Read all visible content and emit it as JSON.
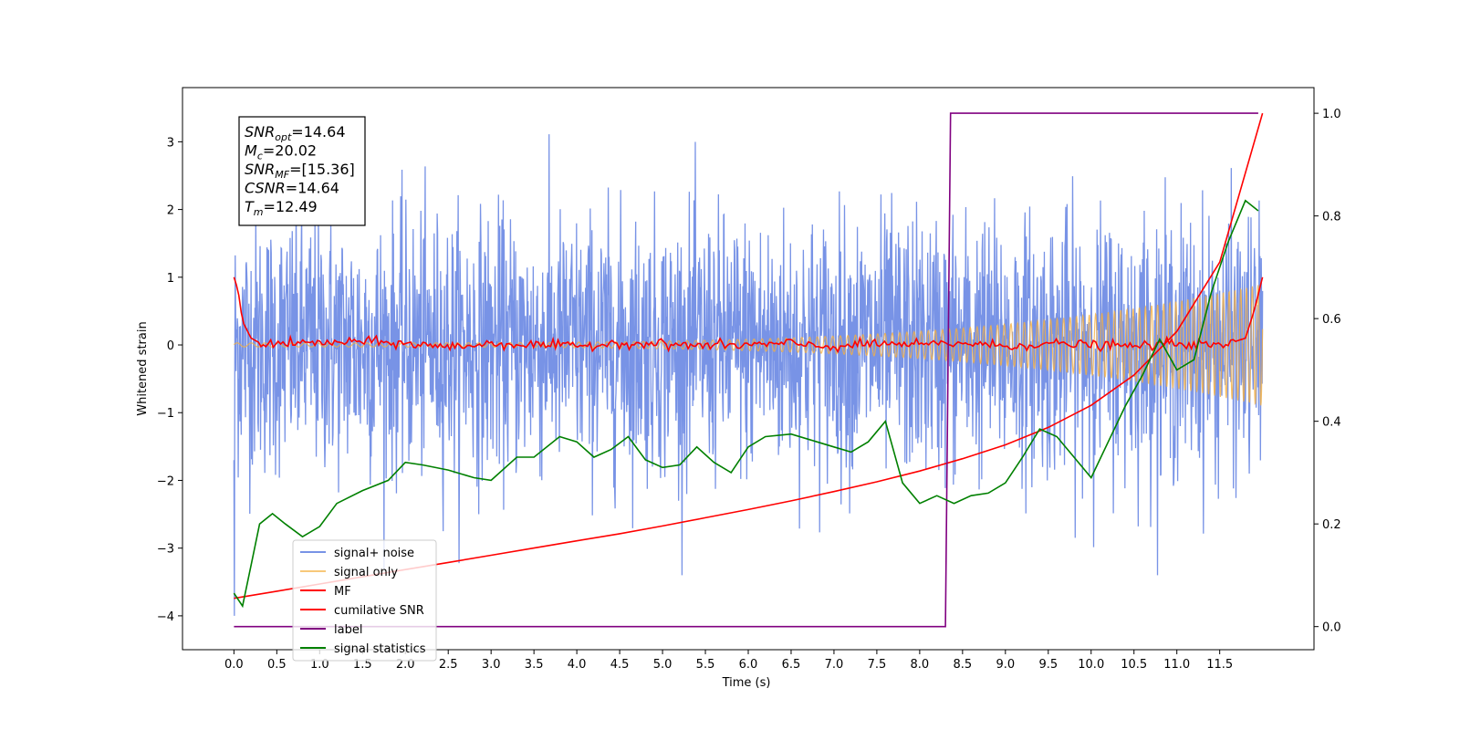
{
  "chart_data": {
    "type": "line",
    "xlabel": "Time (s)",
    "ylabel": "Whitened strain",
    "xlim": [
      -0.6,
      12.6
    ],
    "ylim": [
      -4.5,
      3.8
    ],
    "y2lim": [
      -0.045,
      1.05
    ],
    "x_ticks": [
      0.0,
      0.5,
      1.0,
      1.5,
      2.0,
      2.5,
      3.0,
      3.5,
      4.0,
      4.5,
      5.0,
      5.5,
      6.0,
      6.5,
      7.0,
      7.5,
      8.0,
      8.5,
      9.0,
      9.5,
      10.0,
      10.5,
      11.0,
      11.5
    ],
    "x_tick_labels": [
      "0.0",
      "0.5",
      "1.0",
      "1.5",
      "2.0",
      "2.5",
      "3.0",
      "3.5",
      "4.0",
      "4.5",
      "5.0",
      "5.5",
      "6.0",
      "6.5",
      "7.0",
      "7.5",
      "8.0",
      "8.5",
      "9.0",
      "9.5",
      "10.0",
      "10.5",
      "11.0",
      "11.5"
    ],
    "y_ticks": [
      -4,
      -3,
      -2,
      -1,
      0,
      1,
      2,
      3
    ],
    "y_tick_labels": [
      "−4",
      "−3",
      "−2",
      "−1",
      "0",
      "1",
      "2",
      "3"
    ],
    "y2_ticks": [
      0.0,
      0.2,
      0.4,
      0.6,
      0.8,
      1.0
    ],
    "y2_tick_labels": [
      "0.0",
      "0.2",
      "0.4",
      "0.6",
      "0.8",
      "1.0"
    ],
    "grid": false,
    "legend_position": "bottom-left",
    "annotation_lines": [
      {
        "base": "SNR",
        "sub": "opt",
        "value": "=14.64"
      },
      {
        "base": "M",
        "sub": "c",
        "value": "=20.02"
      },
      {
        "base": "SNR",
        "sub": "MF",
        "value": "=[15.36]"
      },
      {
        "base": "CSNR",
        "sub": "",
        "value": "=14.64"
      },
      {
        "base": "T",
        "sub": "m",
        "value": "=12.49"
      }
    ],
    "series": [
      {
        "name": "signal+ noise",
        "color": "#7893e6",
        "axis": "left",
        "style": "noise",
        "x_range": [
          0.0,
          12.0
        ],
        "envelope": [
          -2.5,
          2.5
        ],
        "peak_range": [
          -3.4,
          3.55
        ]
      },
      {
        "name": "signal only",
        "color": "#f5b041",
        "axis": "left",
        "style": "chirp",
        "x_range": [
          0.0,
          12.0
        ],
        "amplitude_start": 0.03,
        "amplitude_end": 0.9
      },
      {
        "name": "MF",
        "color": "#ff0000",
        "axis": "left",
        "x": [
          0.0,
          0.05,
          0.1,
          0.2,
          0.3,
          0.5,
          1.0,
          1.5,
          2.0,
          2.5,
          3.0,
          3.5,
          4.0,
          4.5,
          5.0,
          5.5,
          6.0,
          6.5,
          7.0,
          7.5,
          8.0,
          8.5,
          9.0,
          9.5,
          10.0,
          10.5,
          11.0,
          11.5,
          11.8,
          11.9,
          12.0
        ],
        "y": [
          1.0,
          0.8,
          0.35,
          0.1,
          0.03,
          0.02,
          0.03,
          0.05,
          0.02,
          -0.03,
          0.02,
          0.0,
          -0.02,
          0.03,
          0.01,
          -0.01,
          0.0,
          0.02,
          -0.03,
          0.02,
          0.0,
          0.03,
          -0.02,
          0.02,
          0.0,
          -0.02,
          0.03,
          -0.02,
          0.1,
          0.5,
          1.0
        ]
      },
      {
        "name": "cumilative SNR",
        "color": "#ff0000",
        "axis": "right",
        "x": [
          0.0,
          0.5,
          1.0,
          1.5,
          2.0,
          2.5,
          3.0,
          3.5,
          4.0,
          4.5,
          5.0,
          5.5,
          6.0,
          6.5,
          7.0,
          7.5,
          8.0,
          8.5,
          9.0,
          9.5,
          10.0,
          10.5,
          11.0,
          11.5,
          12.0
        ],
        "y": [
          0.055,
          0.069,
          0.083,
          0.097,
          0.111,
          0.125,
          0.139,
          0.153,
          0.167,
          0.181,
          0.196,
          0.212,
          0.228,
          0.245,
          0.263,
          0.282,
          0.303,
          0.327,
          0.354,
          0.388,
          0.431,
          0.49,
          0.575,
          0.71,
          1.0
        ]
      },
      {
        "name": "label",
        "color": "#800080",
        "axis": "right",
        "x": [
          0.0,
          8.3,
          8.36,
          11.95
        ],
        "y": [
          0.0,
          0.0,
          1.0,
          1.0
        ]
      },
      {
        "name": "signal statistics",
        "color": "#008000",
        "axis": "right",
        "x": [
          0.0,
          0.1,
          0.2,
          0.3,
          0.45,
          0.6,
          0.8,
          1.0,
          1.2,
          1.5,
          1.8,
          2.0,
          2.2,
          2.5,
          2.8,
          3.0,
          3.3,
          3.5,
          3.8,
          4.0,
          4.2,
          4.4,
          4.6,
          4.8,
          5.0,
          5.2,
          5.4,
          5.6,
          5.8,
          6.0,
          6.2,
          6.5,
          6.8,
          7.0,
          7.2,
          7.4,
          7.6,
          7.8,
          8.0,
          8.2,
          8.4,
          8.6,
          8.8,
          9.0,
          9.2,
          9.4,
          9.6,
          9.8,
          10.0,
          10.2,
          10.4,
          10.6,
          10.8,
          11.0,
          11.2,
          11.4,
          11.6,
          11.8,
          11.95
        ],
        "y": [
          0.065,
          0.04,
          0.12,
          0.2,
          0.22,
          0.2,
          0.175,
          0.195,
          0.24,
          0.265,
          0.285,
          0.32,
          0.315,
          0.305,
          0.29,
          0.285,
          0.33,
          0.33,
          0.37,
          0.36,
          0.33,
          0.345,
          0.37,
          0.325,
          0.31,
          0.315,
          0.35,
          0.32,
          0.3,
          0.35,
          0.37,
          0.375,
          0.36,
          0.35,
          0.34,
          0.36,
          0.4,
          0.28,
          0.24,
          0.255,
          0.24,
          0.255,
          0.26,
          0.28,
          0.33,
          0.385,
          0.37,
          0.33,
          0.29,
          0.36,
          0.43,
          0.49,
          0.56,
          0.5,
          0.52,
          0.65,
          0.75,
          0.83,
          0.81
        ]
      }
    ]
  }
}
